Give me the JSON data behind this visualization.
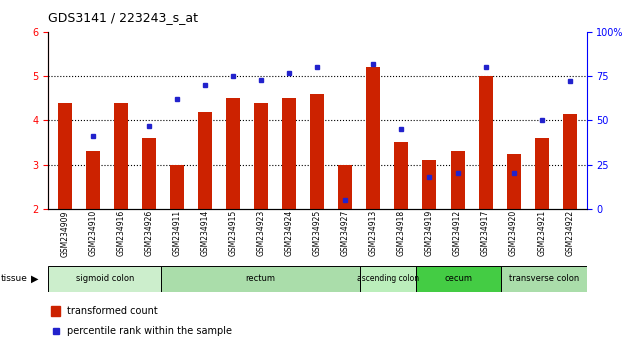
{
  "title": "GDS3141 / 223243_s_at",
  "samples": [
    "GSM234909",
    "GSM234910",
    "GSM234916",
    "GSM234926",
    "GSM234911",
    "GSM234914",
    "GSM234915",
    "GSM234923",
    "GSM234924",
    "GSM234925",
    "GSM234927",
    "GSM234913",
    "GSM234918",
    "GSM234919",
    "GSM234912",
    "GSM234917",
    "GSM234920",
    "GSM234921",
    "GSM234922"
  ],
  "red_values": [
    4.4,
    3.3,
    4.4,
    3.6,
    3.0,
    4.2,
    4.5,
    4.4,
    4.5,
    4.6,
    3.0,
    5.2,
    3.5,
    3.1,
    3.3,
    5.0,
    3.25,
    3.6,
    4.15
  ],
  "blue_values": [
    null,
    41,
    null,
    47,
    62,
    70,
    75,
    73,
    77,
    80,
    5,
    82,
    45,
    18,
    20,
    80,
    20,
    50,
    72
  ],
  "ylim_left": [
    2,
    6
  ],
  "ylim_right": [
    0,
    100
  ],
  "yticks_left": [
    2,
    3,
    4,
    5,
    6
  ],
  "yticks_right": [
    0,
    25,
    50,
    75,
    100
  ],
  "ytick_labels_right": [
    "0",
    "25",
    "50",
    "75",
    "100%"
  ],
  "bar_color": "#cc2200",
  "dot_color": "#2222cc",
  "tissue_groups": [
    {
      "label": "sigmoid colon",
      "start": 0,
      "end": 4,
      "color": "#cceecc"
    },
    {
      "label": "rectum",
      "start": 4,
      "end": 11,
      "color": "#aaddaa"
    },
    {
      "label": "ascending colon",
      "start": 11,
      "end": 13,
      "color": "#bbeebb"
    },
    {
      "label": "cecum",
      "start": 13,
      "end": 16,
      "color": "#44cc44"
    },
    {
      "label": "transverse colon",
      "start": 16,
      "end": 19,
      "color": "#aaddaa"
    }
  ],
  "bar_width": 0.5,
  "gridline_values": [
    3,
    4,
    5
  ]
}
